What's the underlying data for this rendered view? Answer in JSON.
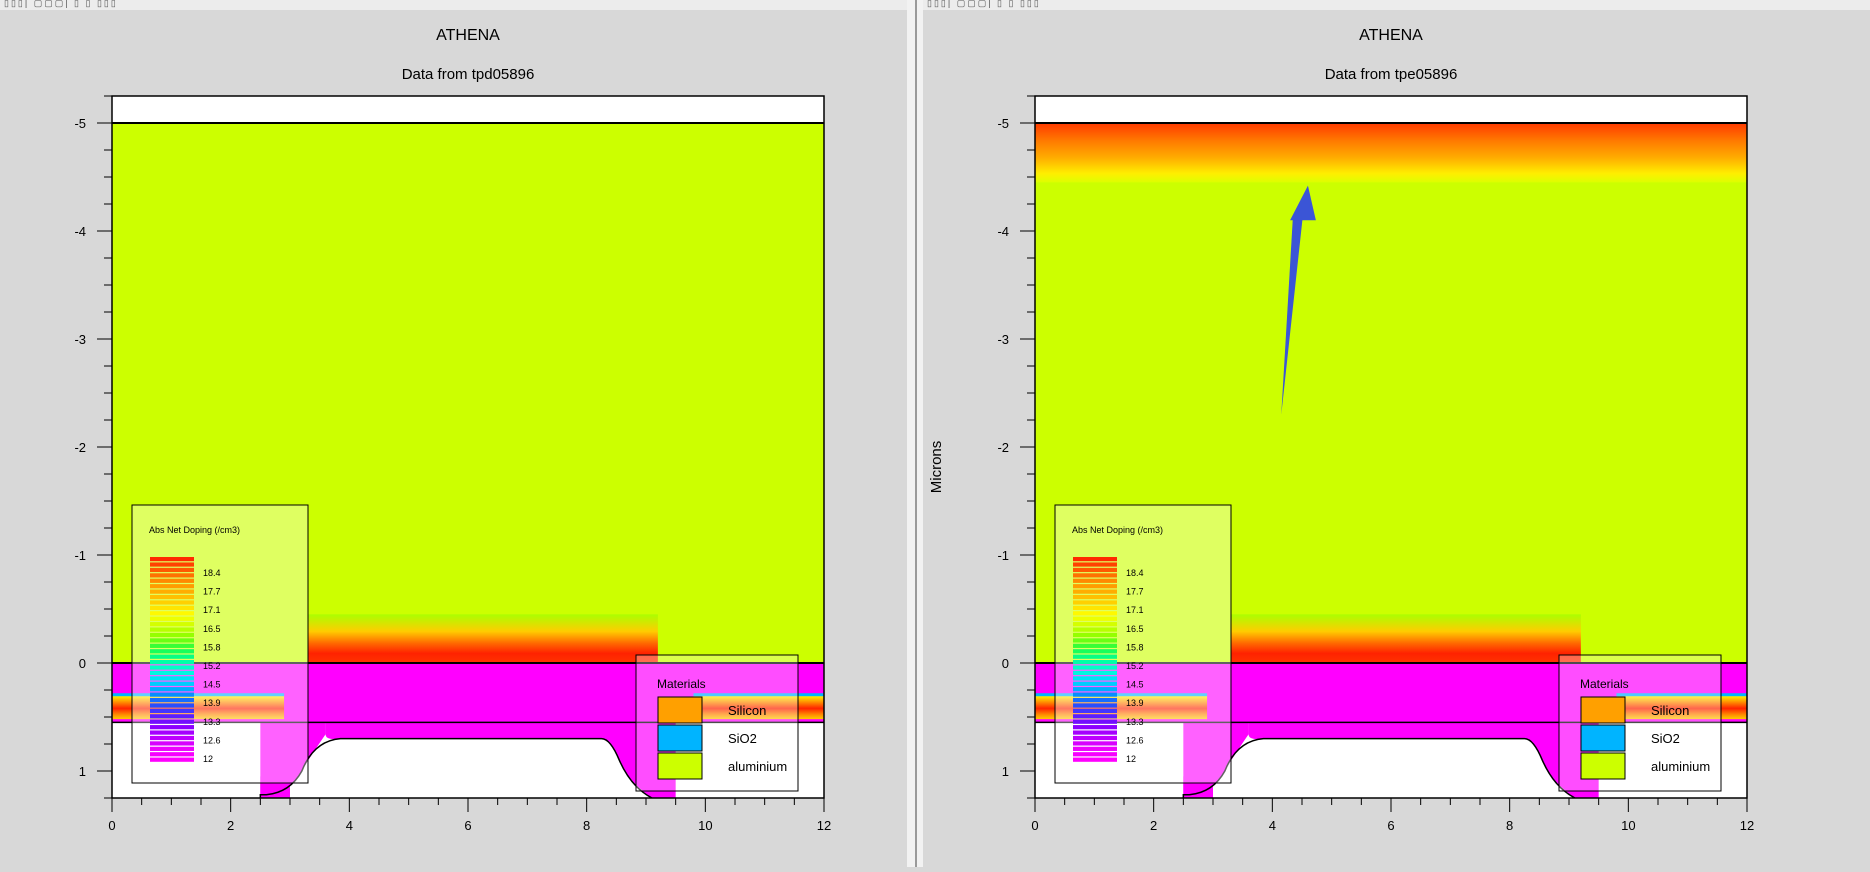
{
  "window": {
    "top_fragment_left": "▯▯▯| ▢▢▢| ▯ ▯ ▯▯▯",
    "top_fragment_right": "▯▯▯| ▢▢▢| ▯ ▯ ▯▯▯"
  },
  "colors": {
    "background": "#d8d8d8",
    "aluminium": "#ccff00",
    "silicon": "#ff00ff",
    "sio2": "#00b4ff",
    "plot_border": "#000000",
    "arrow": "#3b55d6"
  },
  "chart_data": [
    {
      "type": "heatmap",
      "title": "ATHENA",
      "subtitle": "Data from tpd05896",
      "xlabel": "",
      "ylabel": "",
      "xlim": [
        0,
        12
      ],
      "ylim": [
        -5.25,
        1.25
      ],
      "x_ticks": [
        "0",
        "2",
        "4",
        "6",
        "8",
        "10",
        "12"
      ],
      "y_ticks": [
        "-5",
        "-4",
        "-3",
        "-2",
        "-1",
        "0",
        "1"
      ],
      "legend_doping": {
        "title": "Abs Net Doping (/cm3)",
        "labels": [
          "18.4",
          "17.7",
          "17.1",
          "16.5",
          "15.8",
          "15.2",
          "14.5",
          "13.9",
          "13.3",
          "12.6",
          "12"
        ]
      },
      "legend_materials": {
        "title": "Materials",
        "items": [
          {
            "name": "Silicon",
            "color": "#ffa000"
          },
          {
            "name": "SiO2",
            "color": "#00b4ff"
          },
          {
            "name": "aluminium",
            "color": "#ccff00"
          }
        ]
      },
      "top_doping_gradient": false
    },
    {
      "type": "heatmap",
      "title": "ATHENA",
      "subtitle": "Data from tpe05896",
      "xlabel": "",
      "ylabel": "Microns",
      "xlim": [
        0,
        12
      ],
      "ylim": [
        -5.25,
        1.25
      ],
      "x_ticks": [
        "0",
        "2",
        "4",
        "6",
        "8",
        "10",
        "12"
      ],
      "y_ticks": [
        "-5",
        "-4",
        "-3",
        "-2",
        "-1",
        "0",
        "1"
      ],
      "legend_doping": {
        "title": "Abs Net Doping (/cm3)",
        "labels": [
          "18.4",
          "17.7",
          "17.1",
          "16.5",
          "15.8",
          "15.2",
          "14.5",
          "13.9",
          "13.3",
          "12.6",
          "12"
        ]
      },
      "legend_materials": {
        "title": "Materials",
        "items": [
          {
            "name": "Silicon",
            "color": "#ffa000"
          },
          {
            "name": "SiO2",
            "color": "#00b4ff"
          },
          {
            "name": "aluminium",
            "color": "#ccff00"
          }
        ]
      },
      "top_doping_gradient": true
    }
  ]
}
